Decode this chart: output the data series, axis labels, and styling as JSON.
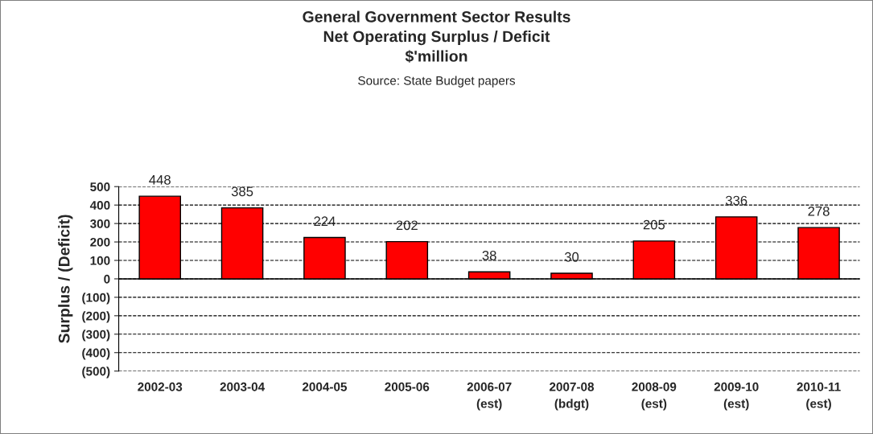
{
  "chart_data": {
    "type": "bar",
    "title": "General Government Sector Results\nNet Operating Surplus / Deficit\n$'million",
    "annotations": [
      "Source: State Budget papers"
    ],
    "ylabel": "Surplus / (Deficit)",
    "categories": [
      "2002-03",
      "2003-04",
      "2004-05",
      "2005-06",
      "2006-07\n(est)",
      "2007-08\n(bdgt)",
      "2008-09\n(est)",
      "2009-10\n(est)",
      "2010-11\n(est)"
    ],
    "values": [
      448,
      385,
      224,
      202,
      38,
      30,
      205,
      336,
      278
    ],
    "color": "#ff0000",
    "data_labels": true,
    "ylim": [
      -500,
      500
    ],
    "yticks": [
      {
        "value": -500,
        "label": "(500)"
      },
      {
        "value": -400,
        "label": "(400)"
      },
      {
        "value": -300,
        "label": "(300)"
      },
      {
        "value": -200,
        "label": "(200)"
      },
      {
        "value": -100,
        "label": "(100)"
      },
      0,
      100,
      200,
      300,
      400,
      500
    ],
    "grid": "y",
    "line_style": "dashed"
  }
}
